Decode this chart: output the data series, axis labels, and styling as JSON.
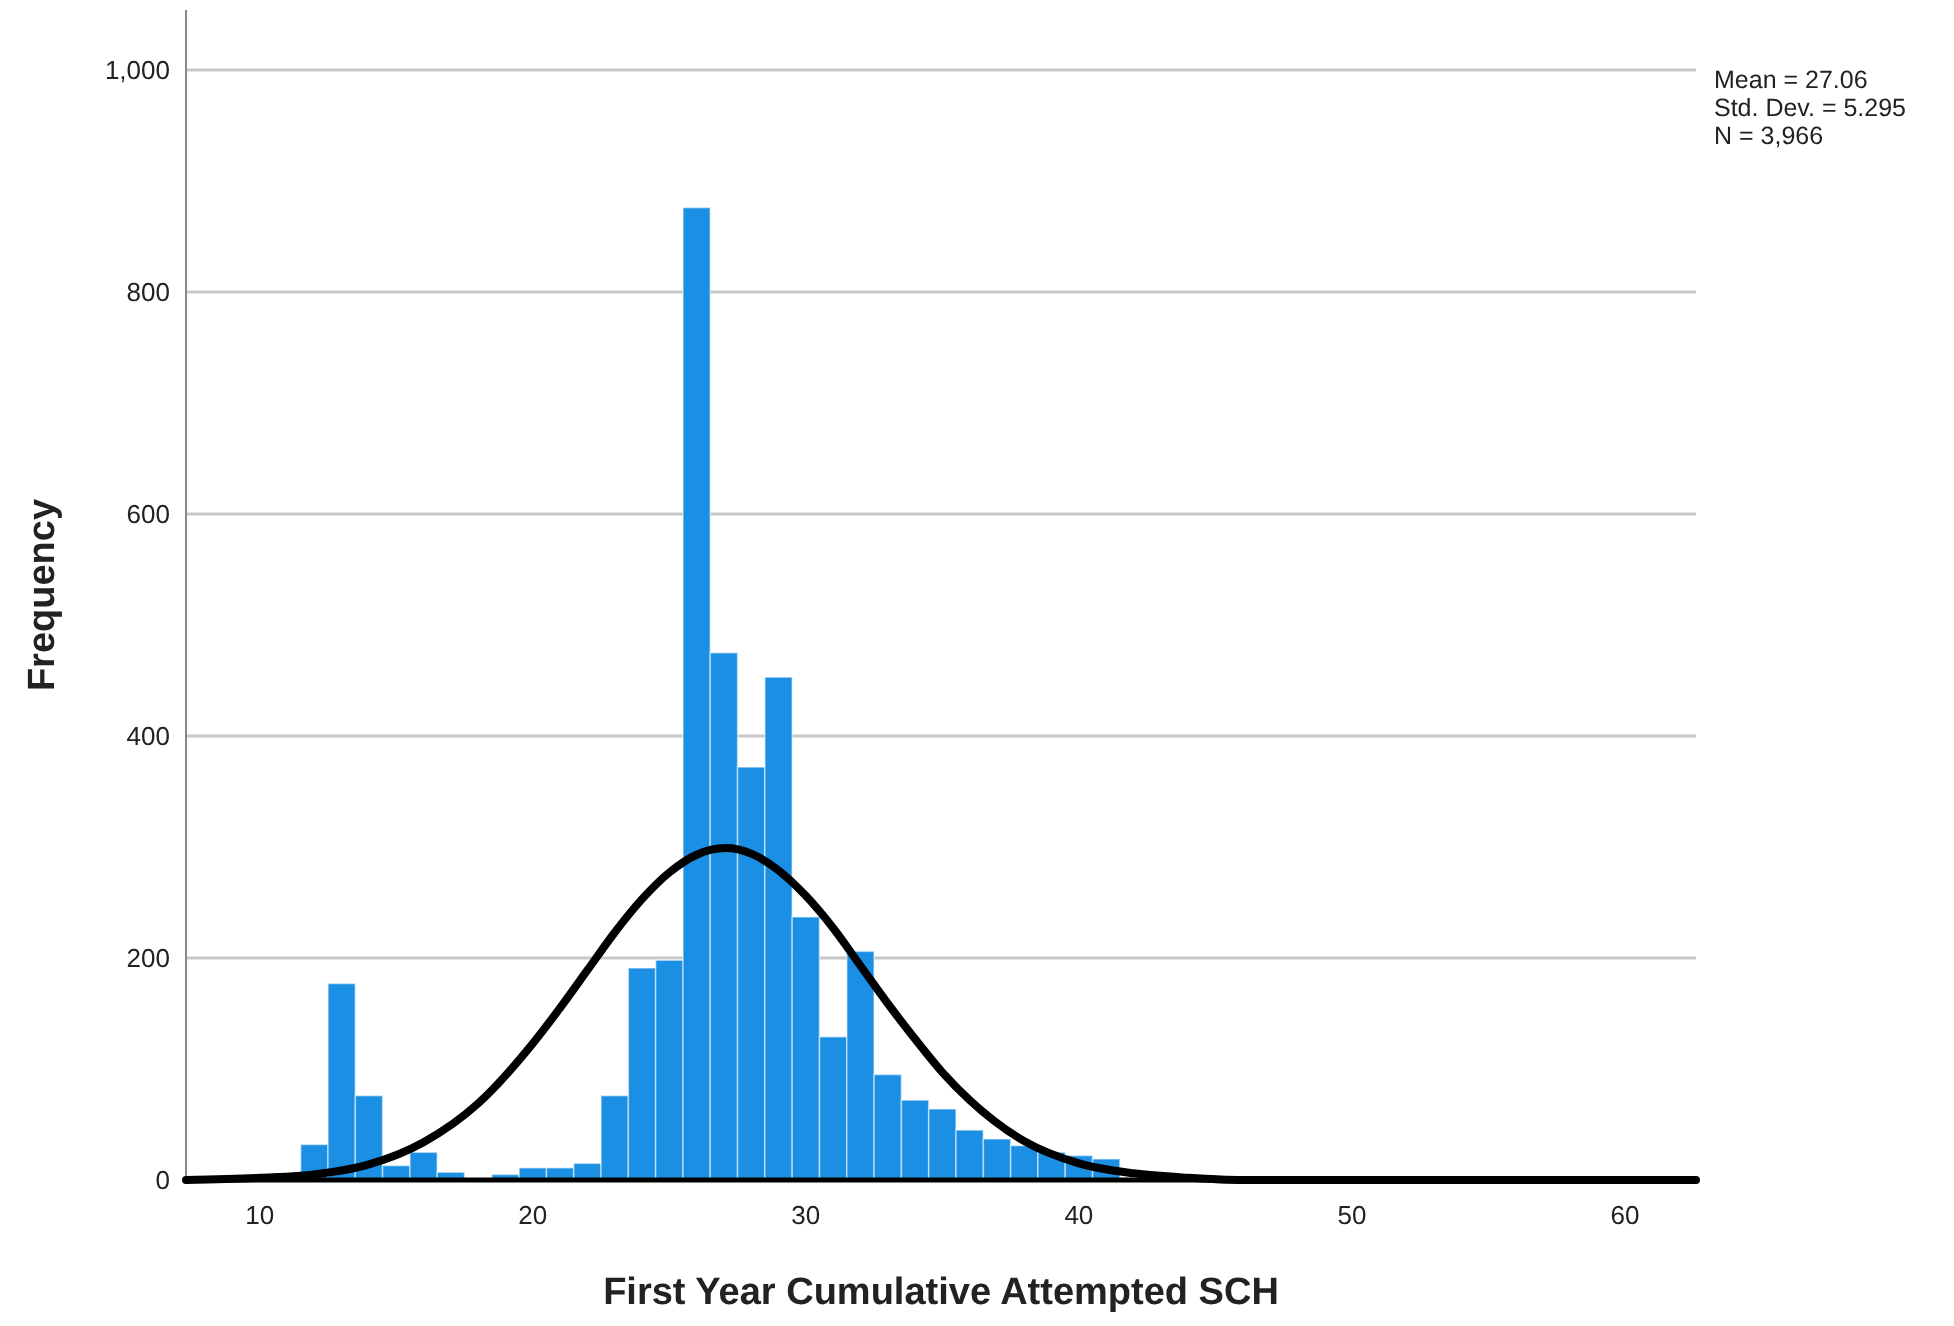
{
  "chart_data": {
    "type": "histogram",
    "xlabel": "First Year Cumulative Attempted SCH",
    "ylabel": "Frequency",
    "bins": [
      11.5,
      12.5,
      13.5,
      14.5,
      15.5,
      16.5,
      17.5,
      18.5,
      19.5,
      20.5,
      21.5,
      22.5,
      23.5,
      24.5,
      25.5,
      26.5,
      27.5,
      28.5,
      29.5,
      30.5,
      31.5,
      32.5,
      33.5,
      34.5,
      35.5,
      36.5,
      37.5,
      38.5,
      39.5,
      40.5,
      41.5
    ],
    "values": [
      32,
      177,
      76,
      13,
      25,
      7,
      null,
      5,
      11,
      11,
      15,
      76,
      191,
      198,
      876,
      475,
      372,
      453,
      237,
      129,
      206,
      95,
      72,
      64,
      45,
      37,
      31,
      25,
      22,
      19
    ],
    "color": "#1a8fe3",
    "series": [
      {
        "type": "line",
        "color": "#000000",
        "x": [
          7.3,
          10,
          12,
          14,
          16,
          18,
          20,
          21,
          22,
          23,
          24,
          25,
          26,
          27.06,
          28,
          29,
          30,
          31,
          32,
          33,
          34,
          35,
          36,
          38,
          40,
          42,
          44,
          46,
          50,
          62.6
        ],
        "values": [
          0,
          2,
          5,
          14,
          34,
          69,
          123,
          155,
          189,
          223,
          253,
          277,
          293,
          299,
          294,
          279,
          256,
          227,
          193,
          159,
          127,
          97,
          72,
          35,
          15,
          6,
          2,
          0,
          0,
          0
        ]
      }
    ],
    "xlim": [
      7.3,
      62.6
    ],
    "xticks": [
      10,
      20,
      30,
      40,
      50,
      60
    ],
    "ylim": [
      0,
      1054
    ],
    "yticks": [
      0,
      200,
      400,
      600,
      800,
      {
        "value": 1000,
        "label": "1,000"
      }
    ],
    "grid": "y",
    "legend": false,
    "annotations": [
      "Mean = 27.06",
      "Std. Dev. = 5.295",
      "N = 3,966"
    ]
  }
}
